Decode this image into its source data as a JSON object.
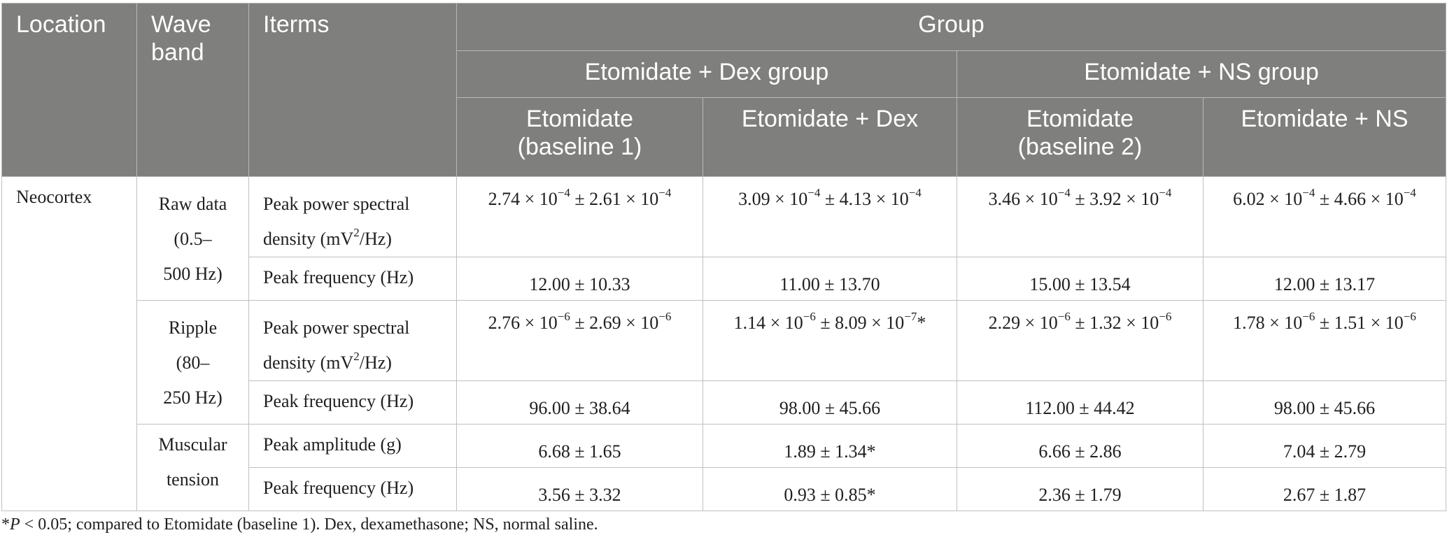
{
  "header": {
    "location": "Location",
    "wave_band_1": "Wave",
    "wave_band_2": "band",
    "items": "Iterms",
    "group": "Group",
    "dex_group": "Etomidate + Dex group",
    "ns_group": "Etomidate + NS group",
    "c1_a": "Etomidate",
    "c1_b": "(baseline 1)",
    "c2": "Etomidate + Dex",
    "c3_a": "Etomidate",
    "c3_b": "(baseline 2)",
    "c4": "Etomidate + NS"
  },
  "location": "Neocortex",
  "bands": {
    "raw": [
      "Raw data",
      "(0.5–",
      "500 Hz)"
    ],
    "ripple": [
      "Ripple",
      "(80–",
      "250 Hz)"
    ],
    "muscular": [
      "Muscular",
      "tension"
    ]
  },
  "items": {
    "pps_a": "Peak power spectral",
    "pps_b_pre": "density (mV",
    "pps_b_sup": "2",
    "pps_b_post": "/Hz)",
    "peak_freq": "Peak frequency (Hz)",
    "peak_amp": "Peak amplitude (g)"
  },
  "values": {
    "raw_pps": [
      {
        "m": "2.74 × 10",
        "me": "−4",
        "s": " ± 2.61 × 10",
        "se": "−4",
        "mark": ""
      },
      {
        "m": "3.09 × 10",
        "me": "−4",
        "s": " ± 4.13 × 10",
        "se": "−4",
        "mark": ""
      },
      {
        "m": "3.46 × 10",
        "me": "−4",
        "s": " ± 3.92 × 10",
        "se": "−4",
        "mark": ""
      },
      {
        "m": "6.02 × 10",
        "me": "−4",
        "s": " ± 4.66 × 10",
        "se": "−4",
        "mark": ""
      }
    ],
    "raw_freq": [
      "12.00 ± 10.33",
      "11.00 ± 13.70",
      "15.00 ± 13.54",
      "12.00 ± 13.17"
    ],
    "ripple_pps": [
      {
        "m": "2.76 × 10",
        "me": "−6",
        "s": " ± 2.69 × 10",
        "se": "−6",
        "mark": ""
      },
      {
        "m": "1.14 × 10",
        "me": "−6",
        "s": " ± 8.09 × 10",
        "se": "−7",
        "mark": "*"
      },
      {
        "m": "2.29 × 10",
        "me": "−6",
        "s": " ± 1.32 × 10",
        "se": "−6",
        "mark": ""
      },
      {
        "m": "1.78 × 10",
        "me": "−6",
        "s": " ± 1.51 × 10",
        "se": "−6",
        "mark": ""
      }
    ],
    "ripple_freq": [
      "96.00 ± 38.64",
      "98.00 ± 45.66",
      "112.00 ± 44.42",
      "98.00 ± 45.66"
    ],
    "musc_amp": [
      "6.68 ± 1.65",
      "1.89 ± 1.34*",
      "6.66 ± 2.86",
      "7.04 ± 2.79"
    ],
    "musc_freq": [
      "3.56 ± 3.32",
      "0.93 ± 0.85*",
      "2.36 ± 1.79",
      "2.67 ± 1.87"
    ]
  },
  "footnote": {
    "star": "*",
    "p": "P",
    "rest": " < 0.05; compared to Etomidate (baseline 1). Dex, dexamethasone; NS, normal saline."
  },
  "colors": {
    "header_bg": "#7f7f7e",
    "header_text": "#ffffff",
    "grid": "#c0c0c0"
  }
}
